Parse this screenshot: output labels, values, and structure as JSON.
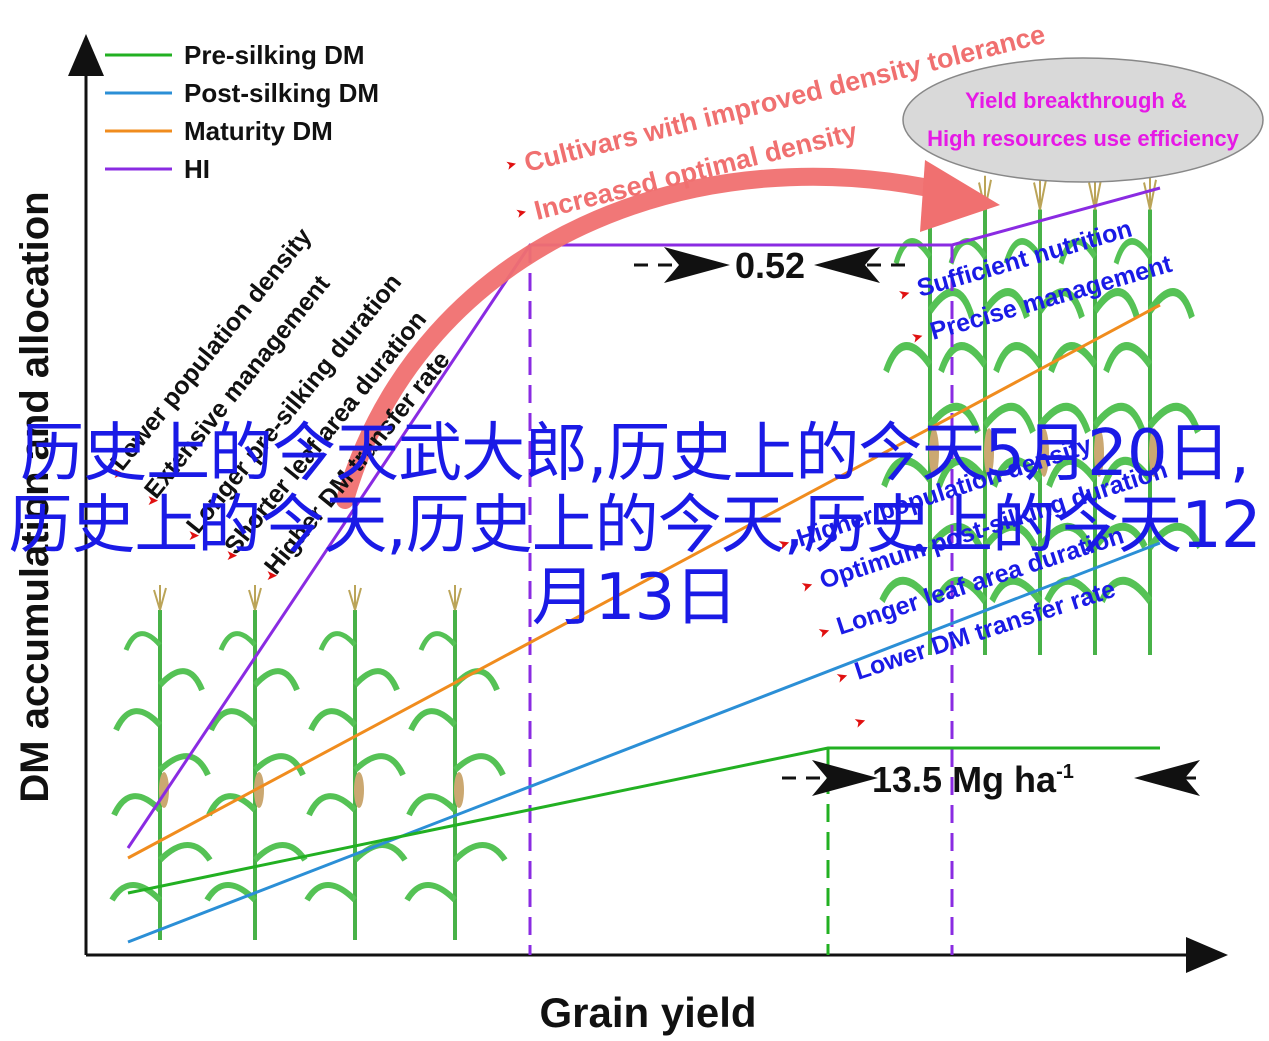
{
  "axes": {
    "ylabel": "DM accumulation and allocation",
    "xlabel": "Grain yield"
  },
  "legend": [
    {
      "label": "Pre-silking DM",
      "color": "#22b022"
    },
    {
      "label": "Post-silking DM",
      "color": "#2b8fd6"
    },
    {
      "label": "Maturity DM",
      "color": "#f08c1e"
    },
    {
      "label": "HI",
      "color": "#8a2be2"
    }
  ],
  "left_factors": [
    "Lower population density",
    "Extensive management",
    "Longer pre-silking duration",
    "Shorter leaf area duration",
    "Higher DM transfer rate"
  ],
  "top_arrow": {
    "line1": "Cultivars with improved density tolerance",
    "line2": "Increased optimal density",
    "color": "#f07070"
  },
  "ellipse": {
    "line1": "Yield breakthrough &",
    "line2": "High resources use efficiency",
    "text_color": "#e619e6"
  },
  "right_top_factors": [
    "Sufficient nutrition",
    "Precise management"
  ],
  "right_factors": [
    "Higher population density",
    "Optimum post-silking duration",
    "Longer leaf area duration",
    "Lower DM transfer rate"
  ],
  "annotations": {
    "hi_gap": "0.52",
    "yield_gap_value": "13.5 Mg ha",
    "yield_gap_sup": "-1"
  },
  "factor_color": "#1a1ae6",
  "bullet_color": "#e01010",
  "watermark": "历史上的今天武大郎,历史上的今天5月20日,历史上的今天,历史上的今天,历史上的今天12月13日"
}
